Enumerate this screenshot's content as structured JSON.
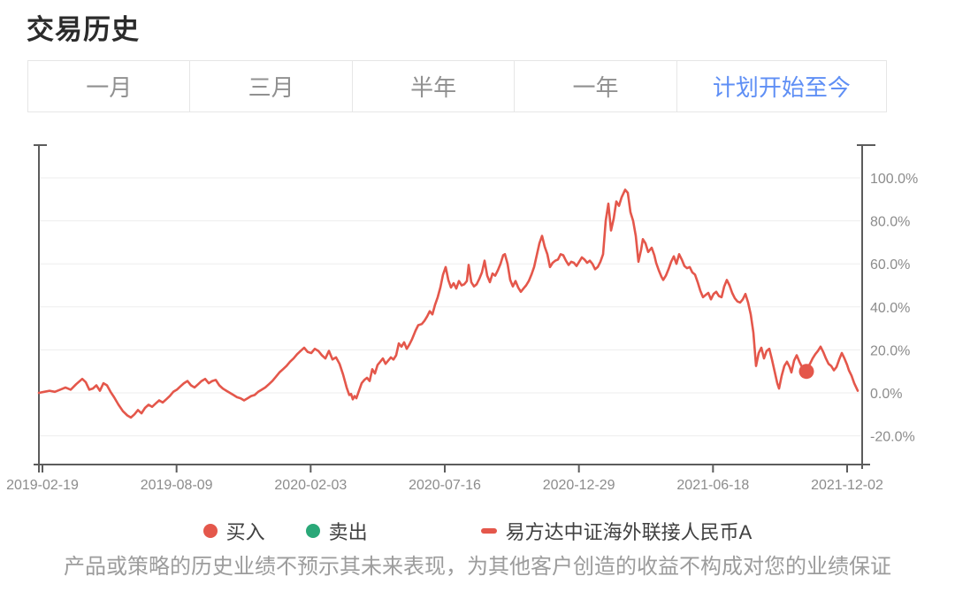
{
  "page": {
    "title": "交易历史"
  },
  "tabs": {
    "active_color": "#5f8ff5",
    "inactive_color": "#909090",
    "items": [
      {
        "label": "一月",
        "active": false
      },
      {
        "label": "三月",
        "active": false
      },
      {
        "label": "半年",
        "active": false
      },
      {
        "label": "一年",
        "active": false
      },
      {
        "label": "计划开始至今",
        "active": true
      }
    ]
  },
  "legend": {
    "items": [
      {
        "label": "买入",
        "marker": "dot",
        "color": "#e4574b"
      },
      {
        "label": "卖出",
        "marker": "dot",
        "color": "#2aa878"
      },
      {
        "label": "易方达中证海外联接人民币A",
        "marker": "dash",
        "color": "#e4574b"
      }
    ]
  },
  "disclaimer": "产品或策略的历史业绩不预示其未来表现，为其他客户创造的收益不构成对您的业绩保证",
  "chart_data": {
    "type": "line",
    "title": "",
    "xlabel": "",
    "ylabel": "",
    "x_ticks": [
      "2019-02-19",
      "2019-08-09",
      "2020-02-03",
      "2020-07-16",
      "2020-12-29",
      "2021-06-18",
      "2021-12-02"
    ],
    "y_ticks": [
      "100.0%",
      "80.0%",
      "60.0%",
      "40.0%",
      "20.0%",
      "0.0%",
      "-20.0%"
    ],
    "y_tick_values": [
      100,
      80,
      60,
      40,
      20,
      0,
      -20
    ],
    "ylim": [
      -34,
      115
    ],
    "grid": "horizontal",
    "legend_position": "bottom",
    "axis_color": "#5c5c5c",
    "grid_color": "#ededed",
    "label_color": "#8c8c8c",
    "series": [
      {
        "name": "易方达中证海外联接人民币A",
        "color": "#e4574b",
        "points": [
          [
            -0.0044,
            0
          ],
          [
            0.0022,
            0.5
          ],
          [
            0.0088,
            1
          ],
          [
            0.0154,
            0.5
          ],
          [
            0.022,
            1.5
          ],
          [
            0.0286,
            2.5
          ],
          [
            0.0352,
            1.5
          ],
          [
            0.0418,
            4
          ],
          [
            0.0495,
            6.5
          ],
          [
            0.0538,
            5
          ],
          [
            0.0582,
            1.5
          ],
          [
            0.0626,
            2
          ],
          [
            0.067,
            3.5
          ],
          [
            0.0714,
            1
          ],
          [
            0.0758,
            4.5
          ],
          [
            0.0802,
            3.5
          ],
          [
            0.0846,
            0.5
          ],
          [
            0.089,
            -2
          ],
          [
            0.0945,
            -5.5
          ],
          [
            0.1,
            -8.5
          ],
          [
            0.1055,
            -10.5
          ],
          [
            0.1099,
            -11.5
          ],
          [
            0.1143,
            -10
          ],
          [
            0.1187,
            -8
          ],
          [
            0.1231,
            -9.5
          ],
          [
            0.1275,
            -7
          ],
          [
            0.1319,
            -5.5
          ],
          [
            0.1363,
            -6.5
          ],
          [
            0.1407,
            -5
          ],
          [
            0.1451,
            -3.5
          ],
          [
            0.1495,
            -4.5
          ],
          [
            0.1538,
            -3
          ],
          [
            0.1582,
            -1.5
          ],
          [
            0.1626,
            0.5
          ],
          [
            0.167,
            1.5
          ],
          [
            0.1714,
            3
          ],
          [
            0.1758,
            4.5
          ],
          [
            0.1802,
            5.5
          ],
          [
            0.1846,
            3.5
          ],
          [
            0.189,
            2.5
          ],
          [
            0.1934,
            4
          ],
          [
            0.1978,
            5.5
          ],
          [
            0.2022,
            6.5
          ],
          [
            0.2066,
            4.5
          ],
          [
            0.211,
            5.5
          ],
          [
            0.2154,
            6
          ],
          [
            0.2198,
            3.5
          ],
          [
            0.2242,
            2
          ],
          [
            0.2286,
            1
          ],
          [
            0.233,
            0
          ],
          [
            0.2374,
            -1
          ],
          [
            0.2418,
            -2
          ],
          [
            0.2462,
            -2.5
          ],
          [
            0.2505,
            -3.5
          ],
          [
            0.2549,
            -2.5
          ],
          [
            0.2593,
            -1.5
          ],
          [
            0.2637,
            -1
          ],
          [
            0.2681,
            0.5
          ],
          [
            0.2725,
            1.5
          ],
          [
            0.2769,
            2.5
          ],
          [
            0.2813,
            4
          ],
          [
            0.2857,
            5.5
          ],
          [
            0.2901,
            7.5
          ],
          [
            0.2945,
            9.5
          ],
          [
            0.2989,
            11
          ],
          [
            0.3033,
            12.5
          ],
          [
            0.3077,
            14.5
          ],
          [
            0.3121,
            16
          ],
          [
            0.3165,
            18
          ],
          [
            0.3209,
            19.5
          ],
          [
            0.3253,
            21
          ],
          [
            0.3297,
            19
          ],
          [
            0.3341,
            18.5
          ],
          [
            0.3385,
            20.5
          ],
          [
            0.3429,
            19.5
          ],
          [
            0.3473,
            17.5
          ],
          [
            0.3516,
            16
          ],
          [
            0.356,
            19.5
          ],
          [
            0.3604,
            15.5
          ],
          [
            0.3648,
            16.5
          ],
          [
            0.3692,
            13.5
          ],
          [
            0.3736,
            8.5
          ],
          [
            0.378,
            2.5
          ],
          [
            0.3813,
            -1
          ],
          [
            0.3835,
            -0.5
          ],
          [
            0.3857,
            -3
          ],
          [
            0.3879,
            -1.5
          ],
          [
            0.3901,
            -2.5
          ],
          [
            0.3934,
            1
          ],
          [
            0.3967,
            4.5
          ],
          [
            0.4,
            6
          ],
          [
            0.4033,
            7
          ],
          [
            0.4066,
            5.5
          ],
          [
            0.4099,
            11
          ],
          [
            0.4132,
            9
          ],
          [
            0.4165,
            13
          ],
          [
            0.4198,
            14.5
          ],
          [
            0.4231,
            16
          ],
          [
            0.4264,
            13.5
          ],
          [
            0.4297,
            15
          ],
          [
            0.433,
            16.5
          ],
          [
            0.4363,
            15.5
          ],
          [
            0.4396,
            17.5
          ],
          [
            0.4429,
            23
          ],
          [
            0.4462,
            21.5
          ],
          [
            0.4495,
            23.5
          ],
          [
            0.4527,
            20.5
          ],
          [
            0.456,
            22.5
          ],
          [
            0.4593,
            25
          ],
          [
            0.4637,
            29
          ],
          [
            0.467,
            31.5
          ],
          [
            0.4714,
            32
          ],
          [
            0.4747,
            33.5
          ],
          [
            0.478,
            35.5
          ],
          [
            0.4813,
            38
          ],
          [
            0.4846,
            36.5
          ],
          [
            0.4879,
            41
          ],
          [
            0.4912,
            44.5
          ],
          [
            0.4945,
            49
          ],
          [
            0.4978,
            55
          ],
          [
            0.5011,
            58.5
          ],
          [
            0.5044,
            52.5
          ],
          [
            0.5077,
            49
          ],
          [
            0.511,
            51
          ],
          [
            0.5143,
            48.5
          ],
          [
            0.5176,
            52
          ],
          [
            0.5209,
            50
          ],
          [
            0.5242,
            50.5
          ],
          [
            0.5275,
            52
          ],
          [
            0.5297,
            59.5
          ],
          [
            0.533,
            51.5
          ],
          [
            0.5363,
            49.5
          ],
          [
            0.5396,
            50.5
          ],
          [
            0.5429,
            53
          ],
          [
            0.5462,
            56
          ],
          [
            0.5495,
            61.5
          ],
          [
            0.5527,
            54.5
          ],
          [
            0.556,
            51.5
          ],
          [
            0.5593,
            55.5
          ],
          [
            0.5626,
            54.5
          ],
          [
            0.5659,
            57
          ],
          [
            0.5692,
            60
          ],
          [
            0.5725,
            64
          ],
          [
            0.5747,
            64.5
          ],
          [
            0.578,
            60
          ],
          [
            0.5813,
            52.5
          ],
          [
            0.5846,
            49.5
          ],
          [
            0.5879,
            52
          ],
          [
            0.5912,
            49
          ],
          [
            0.5945,
            47
          ],
          [
            0.5978,
            48.5
          ],
          [
            0.6011,
            50
          ],
          [
            0.6044,
            52
          ],
          [
            0.6077,
            55
          ],
          [
            0.611,
            58.5
          ],
          [
            0.6143,
            64
          ],
          [
            0.6176,
            69.5
          ],
          [
            0.6209,
            73
          ],
          [
            0.6242,
            68
          ],
          [
            0.6275,
            64.5
          ],
          [
            0.6308,
            58.5
          ],
          [
            0.6341,
            60.5
          ],
          [
            0.6374,
            61.5
          ],
          [
            0.6407,
            62
          ],
          [
            0.644,
            64.5
          ],
          [
            0.6473,
            64
          ],
          [
            0.6505,
            61.5
          ],
          [
            0.6538,
            59.5
          ],
          [
            0.6571,
            61
          ],
          [
            0.6604,
            60.5
          ],
          [
            0.6637,
            59
          ],
          [
            0.667,
            61
          ],
          [
            0.6703,
            63
          ],
          [
            0.6736,
            62
          ],
          [
            0.6769,
            60.5
          ],
          [
            0.6802,
            61.5
          ],
          [
            0.6835,
            60
          ],
          [
            0.6868,
            57.5
          ],
          [
            0.6901,
            58.5
          ],
          [
            0.6934,
            61
          ],
          [
            0.6967,
            64.5
          ],
          [
            0.7,
            80
          ],
          [
            0.7033,
            88
          ],
          [
            0.7066,
            75.5
          ],
          [
            0.7099,
            81
          ],
          [
            0.7132,
            89
          ],
          [
            0.7165,
            87
          ],
          [
            0.7198,
            91
          ],
          [
            0.7242,
            94.5
          ],
          [
            0.7275,
            93
          ],
          [
            0.7308,
            84
          ],
          [
            0.7341,
            80
          ],
          [
            0.7374,
            73
          ],
          [
            0.7407,
            61
          ],
          [
            0.744,
            66.5
          ],
          [
            0.7462,
            71.5
          ],
          [
            0.7495,
            69.5
          ],
          [
            0.7527,
            65.5
          ],
          [
            0.7571,
            67.5
          ],
          [
            0.7604,
            64
          ],
          [
            0.7626,
            60.5
          ],
          [
            0.7659,
            57
          ],
          [
            0.7692,
            54
          ],
          [
            0.7714,
            52.5
          ],
          [
            0.7747,
            54.5
          ],
          [
            0.778,
            57.5
          ],
          [
            0.7813,
            61
          ],
          [
            0.7846,
            63.5
          ],
          [
            0.7879,
            60
          ],
          [
            0.7912,
            64.5
          ],
          [
            0.7945,
            62
          ],
          [
            0.7978,
            59
          ],
          [
            0.8011,
            58
          ],
          [
            0.8044,
            58.5
          ],
          [
            0.8077,
            56
          ],
          [
            0.811,
            55
          ],
          [
            0.8143,
            51.5
          ],
          [
            0.8176,
            47.5
          ],
          [
            0.8209,
            44.5
          ],
          [
            0.8242,
            45.5
          ],
          [
            0.8275,
            46.5
          ],
          [
            0.8308,
            43.5
          ],
          [
            0.8341,
            46
          ],
          [
            0.8374,
            47
          ],
          [
            0.8407,
            45
          ],
          [
            0.844,
            44.5
          ],
          [
            0.8473,
            49.5
          ],
          [
            0.8505,
            52.5
          ],
          [
            0.8538,
            50
          ],
          [
            0.8571,
            46.5
          ],
          [
            0.8604,
            44
          ],
          [
            0.8637,
            42.5
          ],
          [
            0.867,
            42
          ],
          [
            0.8703,
            43.5
          ],
          [
            0.8736,
            46
          ],
          [
            0.8769,
            42
          ],
          [
            0.8802,
            36.5
          ],
          [
            0.8835,
            28
          ],
          [
            0.8868,
            12.5
          ],
          [
            0.8901,
            18.5
          ],
          [
            0.8934,
            21
          ],
          [
            0.8967,
            16
          ],
          [
            0.9,
            19.5
          ],
          [
            0.9033,
            20.5
          ],
          [
            0.9066,
            15.5
          ],
          [
            0.9099,
            10
          ],
          [
            0.9132,
            4.5
          ],
          [
            0.9154,
            2
          ],
          [
            0.9187,
            8
          ],
          [
            0.922,
            12.5
          ],
          [
            0.9253,
            14.5
          ],
          [
            0.9286,
            12
          ],
          [
            0.9308,
            9.5
          ],
          [
            0.9341,
            15
          ],
          [
            0.9374,
            17.5
          ],
          [
            0.9407,
            14.5
          ],
          [
            0.944,
            12
          ],
          [
            0.9473,
            10.5
          ],
          [
            0.9505,
            11.5
          ],
          [
            0.9538,
            13.5
          ],
          [
            0.9571,
            16
          ],
          [
            0.9604,
            18
          ],
          [
            0.9637,
            19.5
          ],
          [
            0.967,
            21.5
          ],
          [
            0.9703,
            19
          ],
          [
            0.9736,
            16
          ],
          [
            0.9769,
            13.5
          ],
          [
            0.9802,
            12.5
          ],
          [
            0.9835,
            10.5
          ],
          [
            0.9868,
            12
          ],
          [
            0.9901,
            15.5
          ],
          [
            0.9934,
            18.5
          ],
          [
            0.9967,
            16
          ],
          [
            1,
            13
          ],
          [
            1.0022,
            10.5
          ],
          [
            1.0055,
            8
          ],
          [
            1.0088,
            4.5
          ],
          [
            1.0132,
            1
          ]
        ]
      }
    ],
    "markers": [
      {
        "type": "buy",
        "label": "买入",
        "t": 0.9495,
        "value": 10,
        "color": "#e4574b"
      }
    ]
  }
}
